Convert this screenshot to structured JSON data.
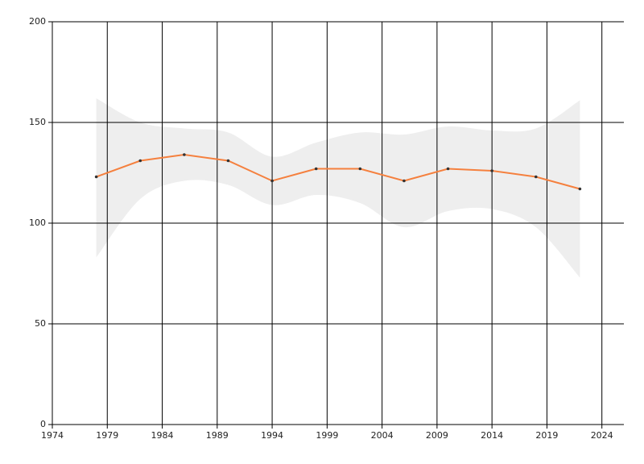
{
  "chart_data": {
    "type": "line",
    "x": [
      1978,
      1982,
      1986,
      1990,
      1994,
      1998,
      2002,
      2006,
      2010,
      2014,
      2018,
      2022
    ],
    "series": [
      {
        "color": "#f5803e",
        "values": [
          123,
          131,
          134,
          131,
          121,
          127,
          127,
          121,
          127,
          126,
          123,
          117
        ]
      }
    ],
    "band": {
      "color": "#eeeeee",
      "upper": [
        162,
        150,
        147,
        145,
        133,
        140,
        145,
        144,
        148,
        146,
        147,
        161
      ],
      "lower": [
        83,
        112,
        121,
        119,
        109,
        114,
        110,
        98,
        106,
        107,
        98,
        73
      ]
    },
    "xlim": [
      1974,
      2026
    ],
    "xticks": [
      1974,
      1979,
      1984,
      1989,
      1994,
      1999,
      2004,
      2009,
      2014,
      2019,
      2024
    ],
    "ylim": [
      0,
      200
    ],
    "yticks": [
      0,
      50,
      100,
      150,
      200
    ],
    "grid": true
  }
}
